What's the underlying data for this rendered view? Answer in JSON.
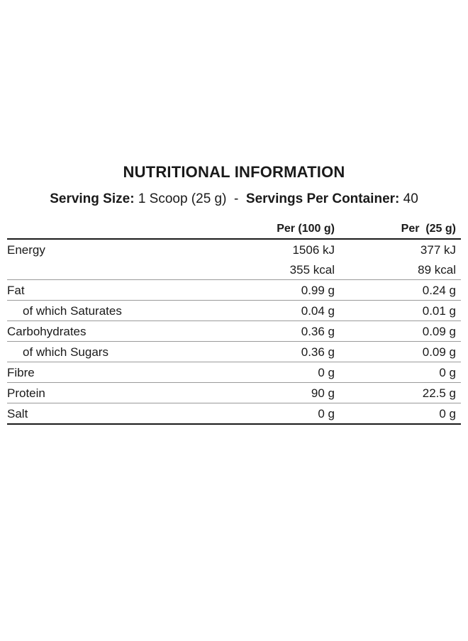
{
  "title": "NUTRITIONAL INFORMATION",
  "serving": {
    "size_label": "Serving Size:",
    "size_value": "1 Scoop (25 g)",
    "separator": "-",
    "per_container_label": "Servings Per Container:",
    "per_container_value": "40"
  },
  "columns": {
    "per100": "Per (100 g)",
    "perServing": "Per  (25 g)"
  },
  "rows": [
    {
      "label": "Energy",
      "v1": "1506 kJ",
      "v1b": "355 kcal",
      "v2": "377 kJ",
      "v2b": "89 kcal"
    },
    {
      "label": "Fat",
      "v1": "0.99 g",
      "v2": "0.24 g"
    },
    {
      "label": "of which Saturates",
      "v1": "0.04 g",
      "v2": "0.01 g"
    },
    {
      "label": "Carbohydrates",
      "v1": "0.36 g",
      "v2": "0.09 g"
    },
    {
      "label": "of which Sugars",
      "v1": "0.36 g",
      "v2": "0.09 g"
    },
    {
      "label": "Fibre",
      "v1": "0 g",
      "v2": "0 g"
    },
    {
      "label": "Protein",
      "v1": "90 g",
      "v2": "22.5 g"
    },
    {
      "label": "Salt",
      "v1": "0 g",
      "v2": "0 g"
    }
  ]
}
